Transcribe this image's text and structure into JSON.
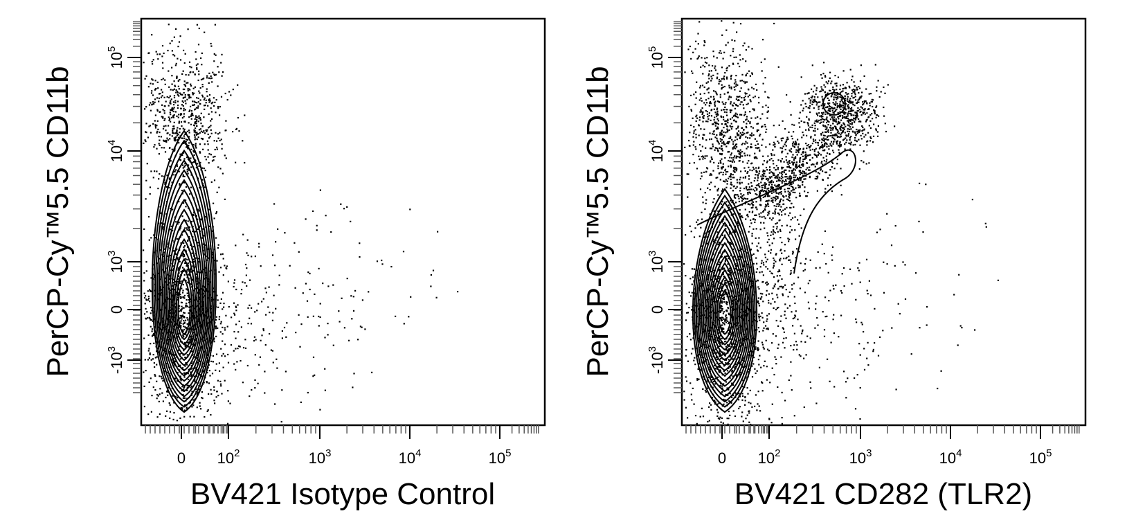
{
  "chart_data": [
    {
      "type": "scatter",
      "subtype": "flow-cytometry-contour-with-outliers",
      "xlabel": "BV421 Isotype Control",
      "ylabel": "PerCP-Cy™5.5  CD11b",
      "xticks": [
        "0",
        "10^2",
        "10^3",
        "10^4",
        "10^5"
      ],
      "yticks": [
        "-10^3",
        "0",
        "10^3",
        "10^4",
        "10^5"
      ],
      "x_scale": "biexponential",
      "y_scale": "biexponential",
      "grid": false,
      "populations": [
        {
          "name": "main",
          "x_center": 10,
          "y_center": 0
        }
      ]
    },
    {
      "type": "scatter",
      "subtype": "flow-cytometry-contour-with-outliers",
      "xlabel": "BV421  CD282 (TLR2)",
      "ylabel": "PerCP-Cy™5.5  CD11b",
      "xticks": [
        "0",
        "10^2",
        "10^3",
        "10^4",
        "10^5"
      ],
      "yticks": [
        "-10^3",
        "0",
        "10^3",
        "10^4",
        "10^5"
      ],
      "x_scale": "biexponential",
      "y_scale": "biexponential",
      "grid": false,
      "populations": [
        {
          "name": "main",
          "x_center": 10,
          "y_center": 0
        },
        {
          "name": "cd11b-high-tlr2-positive",
          "x_center": 500,
          "y_center": 30000
        }
      ]
    }
  ]
}
